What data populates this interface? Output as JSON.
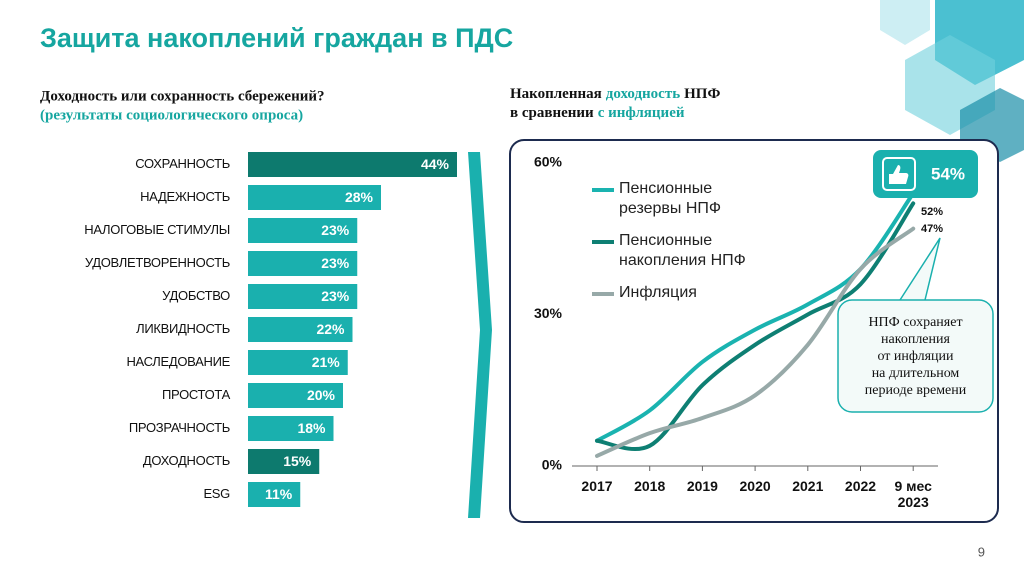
{
  "title": "Защита накоплений граждан в ПДС",
  "page_number": "9",
  "chart_data": [
    {
      "type": "hbar",
      "title": "Доходность или сохранность сбережений?",
      "subtitle": "(результаты социологического опроса)",
      "categories": [
        "СОХРАННОСТЬ",
        "НАДЕЖНОСТЬ",
        "НАЛОГОВЫЕ СТИМУЛЫ",
        "УДОВЛЕТВОРЕННОСТЬ",
        "УДОБСТВО",
        "ЛИКВИДНОСТЬ",
        "НАСЛЕДОВАНИЕ",
        "ПРОСТОТА",
        "ПРОЗРАЧНОСТЬ",
        "ДОХОДНОСТЬ",
        "ESG"
      ],
      "values": [
        44,
        28,
        23,
        23,
        23,
        22,
        21,
        20,
        18,
        15,
        11
      ],
      "value_labels": [
        "44%",
        "28%",
        "23%",
        "23%",
        "23%",
        "22%",
        "21%",
        "20%",
        "18%",
        "15%",
        "11%"
      ],
      "colors": [
        "#0d7a6e",
        "#1ab0ae",
        "#1ab0ae",
        "#1ab0ae",
        "#1ab0ae",
        "#1ab0ae",
        "#1ab0ae",
        "#1ab0ae",
        "#1ab0ae",
        "#0d7a6e",
        "#1ab0ae"
      ]
    },
    {
      "type": "line",
      "title_parts": [
        {
          "text": "Накопленная",
          "highlight": false
        },
        {
          "text": "доходность",
          "highlight": true
        },
        {
          "text": "НПФ",
          "highlight": false
        },
        {
          "text": "в сравнении",
          "highlight": false
        },
        {
          "text": "с инфляцией",
          "highlight": true
        }
      ],
      "categories": [
        "2017",
        "2018",
        "2019",
        "2020",
        "2021",
        "2022",
        "9 мес 2023"
      ],
      "ylim": [
        0,
        60
      ],
      "yticks": [
        {
          "value": 0,
          "label": "0%"
        },
        {
          "value": 30,
          "label": "30%"
        },
        {
          "value": 60,
          "label": "60%"
        }
      ],
      "series": [
        {
          "name": "Пенсионные резервы НПФ",
          "color": "#1ab3b0",
          "values": [
            5,
            11,
            20.6,
            27,
            32,
            39,
            54
          ],
          "value_labels": [
            null,
            null,
            null,
            null,
            null,
            null,
            "54%"
          ]
        },
        {
          "name": "Пенсионные накопления НПФ",
          "color": "#0e7f73",
          "values": [
            5,
            4,
            16,
            24,
            30,
            36,
            52
          ],
          "value_labels": [
            null,
            null,
            null,
            null,
            null,
            null,
            "52%"
          ]
        },
        {
          "name": "Инфляция",
          "color": "#97a9a8",
          "values": [
            2,
            6.5,
            9.5,
            14,
            24,
            39,
            47
          ],
          "value_labels": [
            null,
            null,
            null,
            null,
            null,
            null,
            "47%"
          ]
        }
      ],
      "annotation": "НПФ сохраняет\nнакопления\nот инфляции\nна длительном\nпериоде времени"
    }
  ]
}
